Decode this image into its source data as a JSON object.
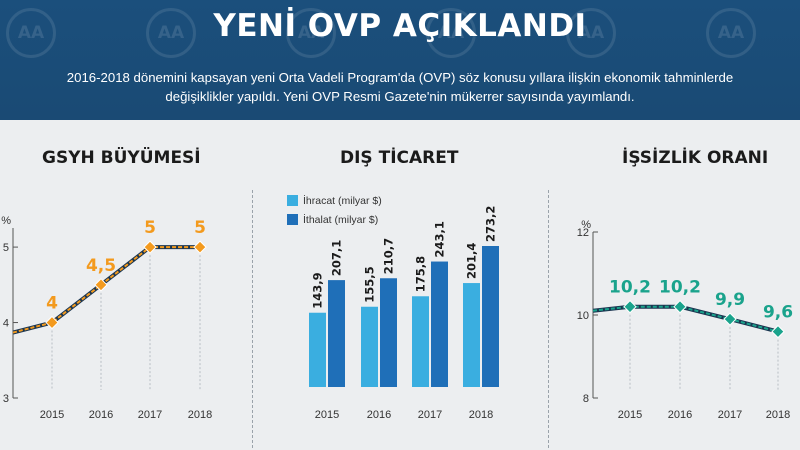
{
  "header": {
    "title": "YENİ OVP AÇIKLANDI",
    "subtitle": "2016-2018 dönemini kapsayan yeni Orta Vadeli Program'da (OVP) söz konusu yıllara ilişkin ekonomik tahminlerde değişiklikler yapıldı. Yeni OVP Resmi Gazete'nin mükerrer sayısında yayımlandı.",
    "watermark_text": "AA"
  },
  "colors": {
    "header_bg": "#1b4f7c",
    "gsyh": "#f39a1e",
    "ihracat": "#3aaee0",
    "ithalat": "#1f6fb8",
    "issizlik": "#1aa38c"
  },
  "chart_data": [
    {
      "type": "line",
      "title": "GSYH BÜYÜMESİ",
      "unit": "%",
      "x": [
        "2015",
        "2016",
        "2017",
        "2018"
      ],
      "y": [
        4,
        4.5,
        5,
        5
      ],
      "data_labels": [
        "4",
        "4,5",
        "5",
        "5"
      ],
      "yticks": [
        "3",
        "4",
        "5"
      ],
      "ylim": [
        3,
        5.2
      ]
    },
    {
      "type": "bar",
      "title": "DIŞ TİCARET",
      "categories": [
        "2015",
        "2016",
        "2017",
        "2018"
      ],
      "series": [
        {
          "name": "İhracat (milyar $)",
          "values": [
            143.9,
            155.5,
            175.8,
            201.4
          ],
          "labels": [
            "143,9",
            "155,5",
            "175,8",
            "201,4"
          ]
        },
        {
          "name": "İthalat (milyar $)",
          "values": [
            207.1,
            210.7,
            243.1,
            273.2
          ],
          "labels": [
            "207,1",
            "210,7",
            "243,1",
            "273,2"
          ]
        }
      ],
      "legend": "top-left"
    },
    {
      "type": "line",
      "title": "İŞSİZLİK ORANI",
      "unit": "%",
      "x": [
        "2015",
        "2016",
        "2017",
        "2018"
      ],
      "y": [
        10.2,
        10.2,
        9.9,
        9.6
      ],
      "data_labels": [
        "10,2",
        "10,2",
        "9,9",
        "9,6"
      ],
      "yticks": [
        "8",
        "10",
        "12"
      ],
      "ylim": [
        8,
        12
      ]
    }
  ]
}
